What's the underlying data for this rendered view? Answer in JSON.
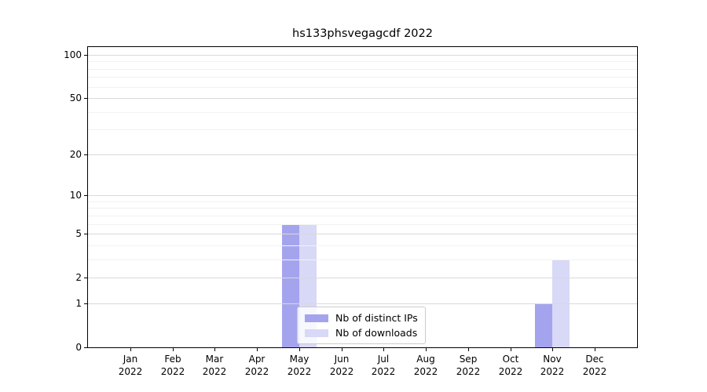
{
  "chart_data": {
    "type": "bar",
    "title": "hs133phsvegagcdf 2022",
    "xlabel": "",
    "ylabel": "",
    "categories": [
      "Jan",
      "Feb",
      "Mar",
      "Apr",
      "May",
      "Jun",
      "Jul",
      "Aug",
      "Sep",
      "Oct",
      "Nov",
      "Dec"
    ],
    "year_label": "2022",
    "series": [
      {
        "name": "Nb of distinct IPs",
        "color": "#a4a4ee",
        "values": [
          0,
          0,
          0,
          0,
          6,
          0,
          0,
          0,
          0,
          0,
          1,
          0
        ]
      },
      {
        "name": "Nb of downloads",
        "color": "#d8d8f7",
        "values": [
          0,
          0,
          0,
          0,
          6,
          0,
          0,
          0,
          0,
          0,
          3,
          0
        ]
      }
    ],
    "yscale": "log10(1+v)",
    "yticks": [
      100,
      50,
      20,
      10,
      5,
      2,
      1,
      0
    ],
    "minor_yticks": [
      3,
      4,
      6,
      7,
      8,
      9,
      30,
      40,
      60,
      70,
      80,
      90
    ],
    "ylim": [
      0,
      113
    ],
    "grid": "horizontal",
    "grid_above_bars": true,
    "legend_position": "lower-center-inside"
  },
  "colors": {
    "distinct_ips": "#a4a4ee",
    "downloads": "#d8d8f7",
    "grid_major": "#d9d9d9",
    "grid_minor": "#f2f2f2",
    "spine": "#000000",
    "legend_border": "#cccccc"
  }
}
